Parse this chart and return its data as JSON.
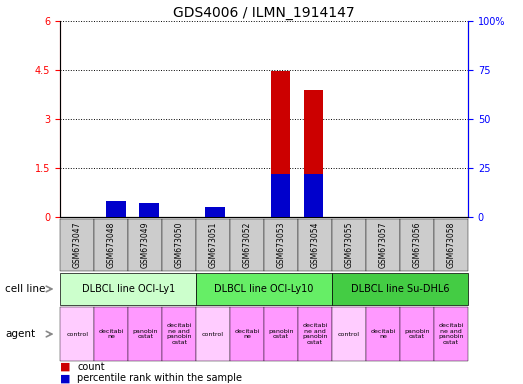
{
  "title": "GDS4006 / ILMN_1914147",
  "samples": [
    "GSM673047",
    "GSM673048",
    "GSM673049",
    "GSM673050",
    "GSM673051",
    "GSM673052",
    "GSM673053",
    "GSM673054",
    "GSM673055",
    "GSM673057",
    "GSM673056",
    "GSM673058"
  ],
  "counts": [
    0,
    0.22,
    0.17,
    0,
    0.13,
    0,
    4.47,
    3.9,
    0,
    0,
    0,
    0
  ],
  "percentiles": [
    0,
    8,
    7,
    0,
    5,
    0,
    22,
    22,
    0,
    0,
    0,
    0
  ],
  "ylim_left": [
    0,
    6
  ],
  "ylim_right": [
    0,
    100
  ],
  "yticks_left": [
    0,
    1.5,
    3,
    4.5,
    6
  ],
  "yticks_right": [
    0,
    25,
    50,
    75,
    100
  ],
  "bar_color": "#cc0000",
  "percentile_color": "#0000cc",
  "bar_width": 0.6,
  "cell_lines": [
    {
      "label": "DLBCL line OCI-Ly1",
      "start": 0,
      "end": 4,
      "color": "#ccffcc"
    },
    {
      "label": "DLBCL line OCI-Ly10",
      "start": 4,
      "end": 8,
      "color": "#66ee66"
    },
    {
      "label": "DLBCL line Su-DHL6",
      "start": 8,
      "end": 12,
      "color": "#44cc44"
    }
  ],
  "agents": [
    "control",
    "decitabi\nne",
    "panobin\nostat",
    "decitabi\nne and\npanobin\nostat",
    "control",
    "decitabi\nne",
    "panobin\nostat",
    "decitabi\nne and\npanobin\nostat",
    "control",
    "decitabi\nne",
    "panobin\nostat",
    "decitabi\nne and\npanobin\nostat"
  ],
  "agent_colors": [
    "#ffccff",
    "#ff99ff",
    "#ff99ff",
    "#ff99ff",
    "#ffccff",
    "#ff99ff",
    "#ff99ff",
    "#ff99ff",
    "#ffccff",
    "#ff99ff",
    "#ff99ff",
    "#ff99ff"
  ],
  "control_color": "#ffccff",
  "other_agent_color": "#ff99ff",
  "legend_count_color": "#cc0000",
  "legend_percentile_color": "#0000cc",
  "background_color": "#ffffff",
  "sample_bg_color": "#cccccc",
  "title_fontsize": 10,
  "sample_fontsize": 5.5,
  "cell_line_fontsize": 7,
  "agent_fontsize": 4.5
}
